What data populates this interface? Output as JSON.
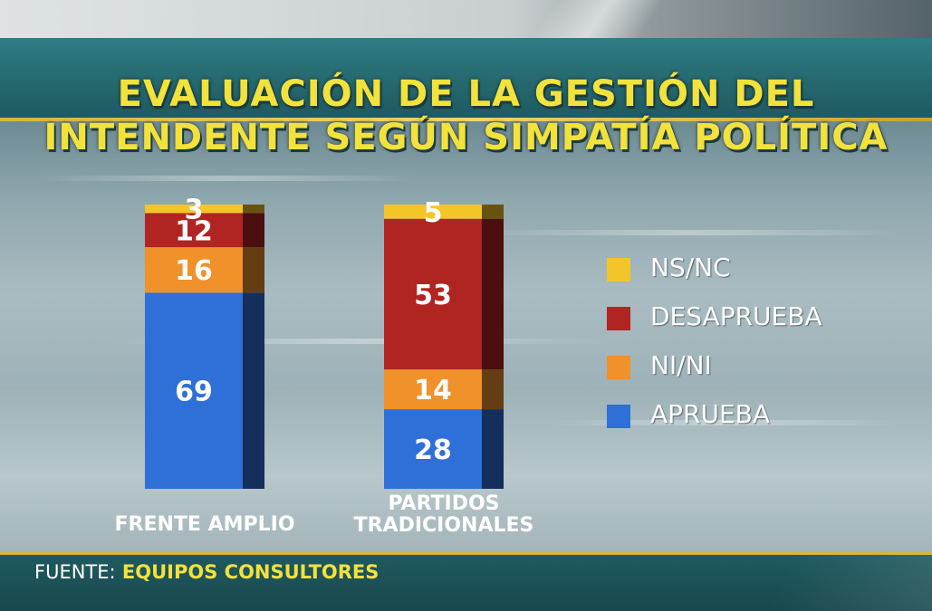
{
  "chart_data": {
    "type": "bar",
    "stacked": true,
    "title_lines": [
      "EVALUACIÓN DE LA GESTIÓN DEL",
      "INTENDENTE SEGÚN SIMPATÍA POLÍTICA"
    ],
    "categories": [
      [
        "FRENTE AMPLIO"
      ],
      [
        "PARTIDOS",
        "TRADICIONALES"
      ]
    ],
    "series": [
      {
        "name": "APRUEBA",
        "values": [
          69,
          28
        ],
        "color": "#2f6fd8"
      },
      {
        "name": "NI/NI",
        "values": [
          16,
          14
        ],
        "color": "#f0912a"
      },
      {
        "name": "DESAPRUEBA",
        "values": [
          12,
          53
        ],
        "color": "#b02422"
      },
      {
        "name": "NS/NC",
        "values": [
          3,
          5
        ],
        "color": "#f2c629"
      }
    ],
    "legend_order": [
      "NS/NC",
      "DESAPRUEBA",
      "NI/NI",
      "APRUEBA"
    ],
    "legend_position": "right",
    "ylim": [
      0,
      100
    ],
    "grid": false
  },
  "footer": {
    "label": "FUENTE:",
    "source": "EQUIPOS CONSULTORES"
  }
}
